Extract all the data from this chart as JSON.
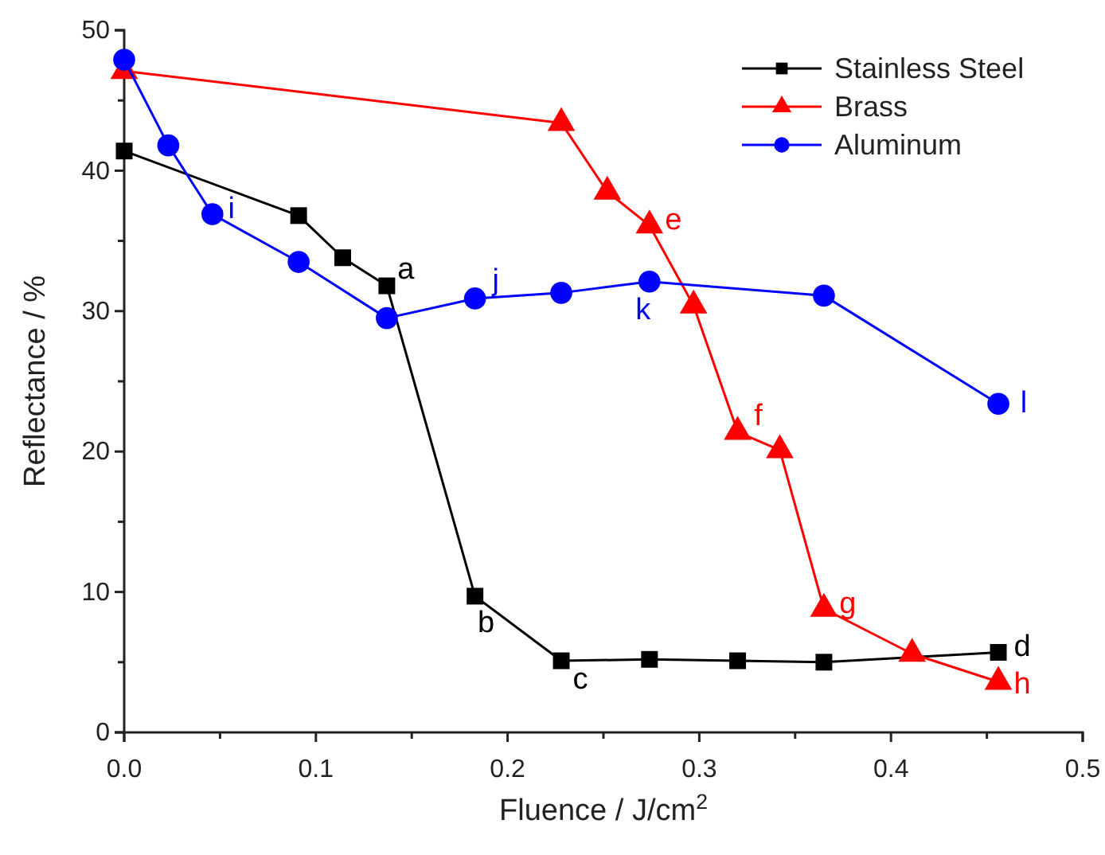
{
  "chart_data": {
    "type": "line",
    "xlabel": "Fluence / J/cm$^{2}$",
    "ylabel": "Reflectance / %",
    "xlim": [
      0,
      0.5
    ],
    "ylim": [
      0,
      50
    ],
    "xticks": [
      {
        "value": 0,
        "label": "0.0"
      },
      {
        "value": 0.05,
        "label": null
      },
      {
        "value": 0.1,
        "label": "0.1"
      },
      {
        "value": 0.15,
        "label": null
      },
      {
        "value": 0.2,
        "label": "0.2"
      },
      {
        "value": 0.25,
        "label": null
      },
      {
        "value": 0.3,
        "label": "0.3"
      },
      {
        "value": 0.35,
        "label": null
      },
      {
        "value": 0.4,
        "label": "0.4"
      },
      {
        "value": 0.45,
        "label": null
      },
      {
        "value": 0.5,
        "label": "0.5"
      }
    ],
    "yticks": [
      0,
      {
        "value": 5,
        "label": null
      },
      10,
      {
        "value": 15,
        "label": null
      },
      20,
      {
        "value": 25,
        "label": null
      },
      30,
      {
        "value": 35,
        "label": null
      },
      40,
      {
        "value": 45,
        "label": null
      },
      50
    ],
    "grid": false,
    "legend": "top right",
    "line_style": "solid",
    "series": [
      {
        "name": "Stainless Steel",
        "color": "#000000",
        "marker": "square",
        "x": [
          0,
          0.091,
          0.114,
          0.137,
          0.183,
          0.228,
          0.274,
          0.32,
          0.365,
          0.456
        ],
        "values": [
          41.4,
          36.8,
          33.8,
          31.8,
          9.7,
          5.1,
          5.2,
          5.1,
          5.0,
          5.7
        ]
      },
      {
        "name": "Brass",
        "color": "#ff0000",
        "marker": "triangle",
        "x": [
          0,
          0.228,
          0.252,
          0.274,
          0.297,
          0.32,
          0.342,
          0.365,
          0.411,
          0.456
        ],
        "values": [
          47.1,
          43.4,
          38.5,
          36.1,
          30.4,
          21.4,
          20.1,
          8.8,
          5.6,
          3.6
        ]
      },
      {
        "name": "Aluminum",
        "color": "#0000ff",
        "marker": "circle",
        "x": [
          0,
          0.023,
          0.046,
          0.091,
          0.137,
          0.183,
          0.228,
          0.274,
          0.365,
          0.456
        ],
        "values": [
          47.9,
          41.8,
          36.9,
          33.5,
          29.5,
          30.9,
          31.3,
          32.1,
          31.1,
          23.4
        ]
      }
    ],
    "annotations": [
      {
        "text": "a",
        "x": 0.137,
        "y": 31.8
      },
      {
        "text": "b",
        "x": 0.183,
        "y": 9.7
      },
      {
        "text": "c",
        "x": 0.228,
        "y": 5.1
      },
      {
        "text": "d",
        "x": 0.456,
        "y": 5.7
      },
      {
        "text": "e",
        "x": 0.274,
        "y": 36.1
      },
      {
        "text": "f",
        "x": 0.32,
        "y": 21.4
      },
      {
        "text": "g",
        "x": 0.365,
        "y": 8.8
      },
      {
        "text": "h",
        "x": 0.456,
        "y": 3.6
      },
      {
        "text": "i",
        "x": 0.046,
        "y": 36.9
      },
      {
        "text": "j",
        "x": 0.183,
        "y": 30.9
      },
      {
        "text": "k",
        "x": 0.274,
        "y": 32.1
      },
      {
        "text": "l",
        "x": 0.456,
        "y": 23.4
      }
    ]
  }
}
